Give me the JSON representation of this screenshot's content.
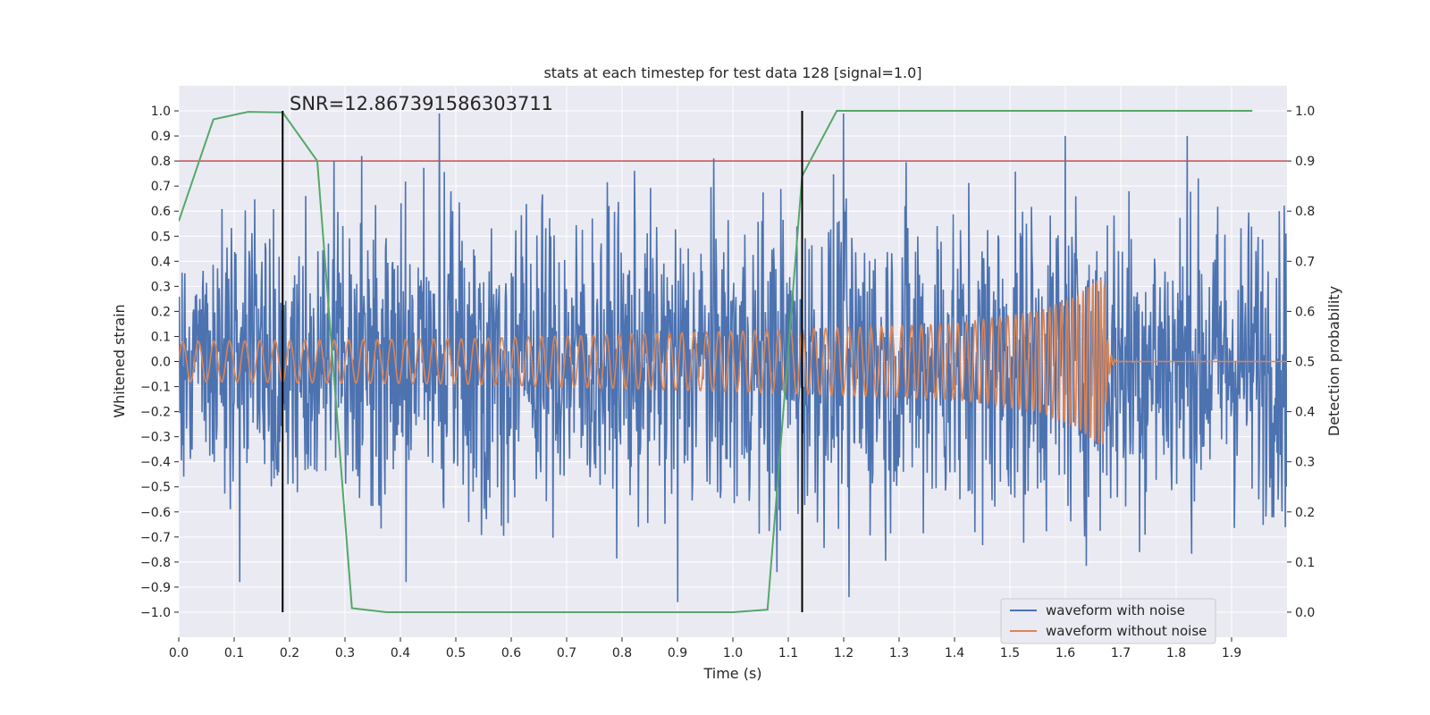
{
  "chart_data": {
    "type": "line",
    "title": "stats at each timestep for test data 128 [signal=1.0]",
    "xlabel": "Time (s)",
    "ylabel": "Whitened strain",
    "y2label": "Detection probability",
    "xlim": [
      0.0,
      2.0
    ],
    "ylim": [
      -1.1,
      1.1
    ],
    "y2lim": [
      -0.05,
      1.05
    ],
    "x_ticks": [
      "0.0",
      "0.1",
      "0.2",
      "0.3",
      "0.4",
      "0.5",
      "0.6",
      "0.7",
      "0.8",
      "0.9",
      "1.0",
      "1.1",
      "1.2",
      "1.3",
      "1.4",
      "1.5",
      "1.6",
      "1.7",
      "1.8",
      "1.9"
    ],
    "y_ticks": [
      "1.0",
      "0.9",
      "0.8",
      "0.7",
      "0.6",
      "0.5",
      "0.4",
      "0.3",
      "0.2",
      "0.1",
      "0.0",
      "−0.1",
      "−0.2",
      "−0.3",
      "−0.4",
      "−0.5",
      "−0.6",
      "−0.7",
      "−0.8",
      "−0.9",
      "−1.0"
    ],
    "y2_ticks": [
      "1.0",
      "0.9",
      "0.8",
      "0.7",
      "0.6",
      "0.5",
      "0.4",
      "0.3",
      "0.2",
      "0.1",
      "0.0"
    ],
    "grid": true,
    "legend_position": "lower-right",
    "series": [
      {
        "name": "waveform with noise",
        "color": "#4c72b0",
        "axis": "left",
        "envelope": {
          "x": [
            0.0,
            0.3,
            0.5,
            0.8,
            1.0,
            1.2,
            1.4,
            1.6,
            1.67,
            1.8,
            2.0
          ],
          "amplitude": [
            0.35,
            0.4,
            0.4,
            0.4,
            0.4,
            0.42,
            0.42,
            0.42,
            0.45,
            0.4,
            0.4
          ]
        },
        "extremes": [
          {
            "x": 0.47,
            "y": 0.99
          },
          {
            "x": 0.33,
            "y": 0.82
          },
          {
            "x": 0.28,
            "y": 0.8
          },
          {
            "x": 0.9,
            "y": -0.96
          },
          {
            "x": 1.2,
            "y": 0.99
          },
          {
            "x": 1.21,
            "y": -0.94
          },
          {
            "x": 1.82,
            "y": 0.9
          },
          {
            "x": 1.6,
            "y": 0.9
          },
          {
            "x": 0.41,
            "y": -0.88
          },
          {
            "x": 0.11,
            "y": -0.88
          },
          {
            "x": 1.08,
            "y": -0.84
          }
        ]
      },
      {
        "name": "waveform without noise",
        "color": "#dd8452",
        "axis": "left",
        "frequency_hz": [
          [
            0.0,
            35
          ],
          [
            1.2,
            48
          ],
          [
            1.5,
            70
          ],
          [
            1.64,
            110
          ],
          [
            1.67,
            160
          ]
        ],
        "amplitude": [
          [
            0.0,
            0.08
          ],
          [
            0.5,
            0.09
          ],
          [
            1.0,
            0.12
          ],
          [
            1.4,
            0.15
          ],
          [
            1.55,
            0.2
          ],
          [
            1.62,
            0.26
          ],
          [
            1.66,
            0.33
          ]
        ],
        "merger_time": 1.67
      },
      {
        "color": "#55a868",
        "axis": "right",
        "x": [
          0.0,
          0.0625,
          0.125,
          0.1875,
          0.25,
          0.3125,
          0.375,
          0.4375,
          0.5,
          0.5625,
          0.625,
          0.6875,
          0.75,
          0.8125,
          0.875,
          0.9375,
          1.0,
          1.0625,
          1.125,
          1.1875,
          1.25,
          1.3125,
          1.375,
          1.4375,
          1.5,
          1.5625,
          1.625,
          1.6875,
          1.75,
          1.8125,
          1.875,
          1.9375
        ],
        "values": [
          0.78,
          0.983,
          0.998,
          0.997,
          0.9,
          0.008,
          0.0,
          0.0,
          0.0,
          0.0,
          0.0,
          0.0,
          0.0,
          0.0,
          0.0,
          0.0,
          0.0,
          0.005,
          0.87,
          1.0,
          1.0,
          1.0,
          1.0,
          1.0,
          1.0,
          1.0,
          1.0,
          1.0,
          1.0,
          1.0,
          1.0,
          1.0
        ]
      }
    ],
    "threshold": {
      "axis": "right",
      "value": 0.9,
      "color": "#c44e52"
    },
    "vlines": [
      {
        "x": 0.1875,
        "ymin": 0.0,
        "ymax": 1.0,
        "color": "#000000"
      },
      {
        "x": 1.125,
        "ymin": 0.0,
        "ymax": 1.0,
        "color": "#000000"
      }
    ],
    "annotation": "SNR=12.867391586303711"
  }
}
